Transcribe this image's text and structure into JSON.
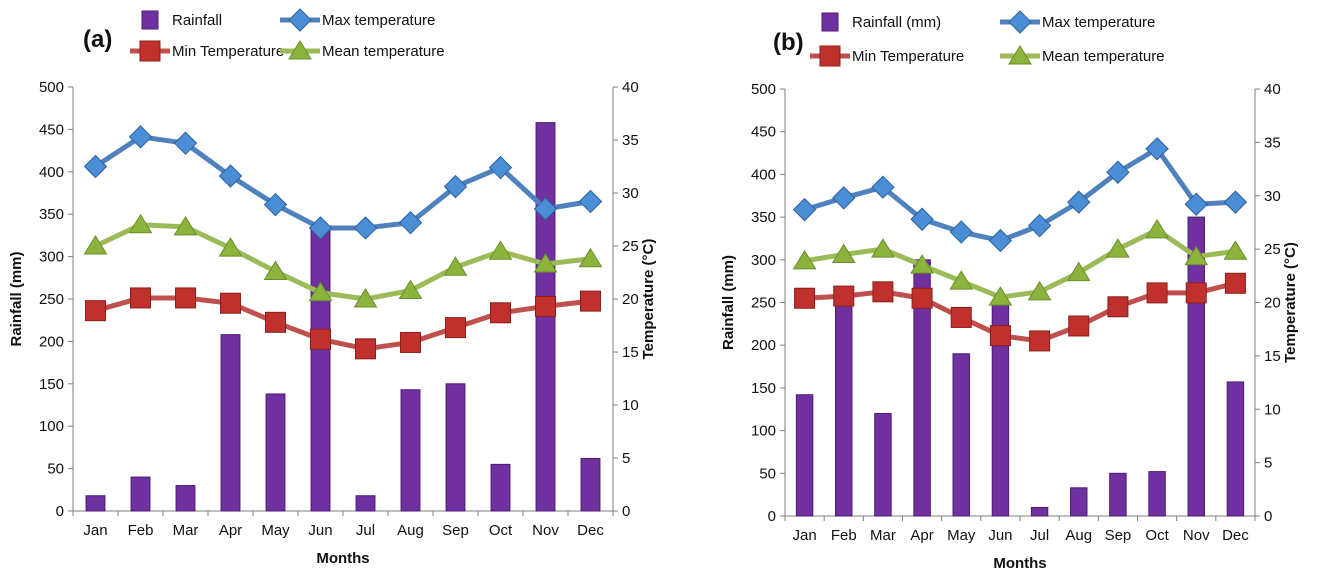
{
  "chart_data": [
    {
      "type": "bar+line",
      "panel_label": "(a)",
      "categories": [
        "Jan",
        "Feb",
        "Mar",
        "Apr",
        "May",
        "Jun",
        "Jul",
        "Aug",
        "Sep",
        "Oct",
        "Nov",
        "Dec"
      ],
      "xlabel": "Months",
      "ylabel": "Rainfall (mm)",
      "ylabel_right": "Temperature (°C)",
      "ylim": [
        0,
        500
      ],
      "ylim_right": [
        0,
        40
      ],
      "yticks": [
        "0",
        "50",
        "100",
        "150",
        "200",
        "250",
        "300",
        "350",
        "400",
        "450",
        "500"
      ],
      "yticks_right": [
        "0",
        "5",
        "10",
        "15",
        "20",
        "25",
        "30",
        "35",
        "40"
      ],
      "series": [
        {
          "name": "Rainfall",
          "kind": "bar",
          "axis": "left",
          "color": "#7030a0",
          "values": [
            18,
            40,
            30,
            208,
            138,
            332,
            18,
            143,
            150,
            55,
            458,
            62
          ]
        },
        {
          "name": "Max temperature",
          "kind": "line",
          "marker": "diamond",
          "axis": "right",
          "color": "#4f81bd",
          "marker_color": "#4a8fd6",
          "values": [
            32.5,
            35.3,
            34.7,
            31.6,
            28.9,
            26.7,
            26.7,
            27.2,
            30.6,
            32.4,
            28.5,
            29.2
          ]
        },
        {
          "name": "Min Temperature",
          "kind": "line",
          "marker": "square",
          "axis": "right",
          "color": "#c0504d",
          "marker_color": "#c0302d",
          "values": [
            18.9,
            20.1,
            20.1,
            19.6,
            17.8,
            16.2,
            15.3,
            15.9,
            17.3,
            18.7,
            19.3,
            19.8
          ]
        },
        {
          "name": "Mean temperature",
          "kind": "line",
          "marker": "triangle",
          "axis": "right",
          "color": "#9bbb59",
          "marker_color": "#8cb43c",
          "values": [
            25.0,
            27.0,
            26.8,
            24.8,
            22.6,
            20.6,
            20.0,
            20.8,
            23.0,
            24.5,
            23.3,
            23.8
          ]
        }
      ]
    },
    {
      "type": "bar+line",
      "panel_label": "(b)",
      "categories": [
        "Jan",
        "Feb",
        "Mar",
        "Apr",
        "May",
        "Jun",
        "Jul",
        "Aug",
        "Sep",
        "Oct",
        "Nov",
        "Dec"
      ],
      "xlabel": "Months",
      "ylabel": "Rainfall (mm)",
      "ylabel_right": "Temperature (°C)",
      "ylim": [
        0,
        500
      ],
      "ylim_right": [
        0,
        40
      ],
      "yticks": [
        "0",
        "50",
        "100",
        "150",
        "200",
        "250",
        "300",
        "350",
        "400",
        "450",
        "500"
      ],
      "yticks_right": [
        "0",
        "5",
        "10",
        "15",
        "20",
        "25",
        "30",
        "35",
        "40"
      ],
      "series": [
        {
          "name": "Rainfall (mm)",
          "kind": "bar",
          "axis": "left",
          "color": "#7030a0",
          "values": [
            142,
            250,
            120,
            300,
            190,
            248,
            10,
            33,
            50,
            52,
            350,
            157
          ]
        },
        {
          "name": "Max temperature",
          "kind": "line",
          "marker": "diamond",
          "axis": "right",
          "color": "#4f81bd",
          "marker_color": "#4a8fd6",
          "values": [
            28.7,
            29.8,
            30.8,
            27.8,
            26.6,
            25.8,
            27.2,
            29.4,
            32.2,
            34.4,
            29.2,
            29.4
          ]
        },
        {
          "name": "Min Temperature",
          "kind": "line",
          "marker": "square",
          "axis": "right",
          "color": "#c0504d",
          "marker_color": "#c0302d",
          "values": [
            20.4,
            20.6,
            21.0,
            20.4,
            18.6,
            16.9,
            16.4,
            17.8,
            19.6,
            20.9,
            20.9,
            21.8
          ]
        },
        {
          "name": "Mean temperature",
          "kind": "line",
          "marker": "triangle",
          "axis": "right",
          "color": "#9bbb59",
          "marker_color": "#8cb43c",
          "values": [
            23.9,
            24.5,
            25.0,
            23.5,
            22.0,
            20.5,
            21.0,
            22.8,
            25.0,
            26.8,
            24.3,
            24.8
          ]
        }
      ]
    }
  ]
}
